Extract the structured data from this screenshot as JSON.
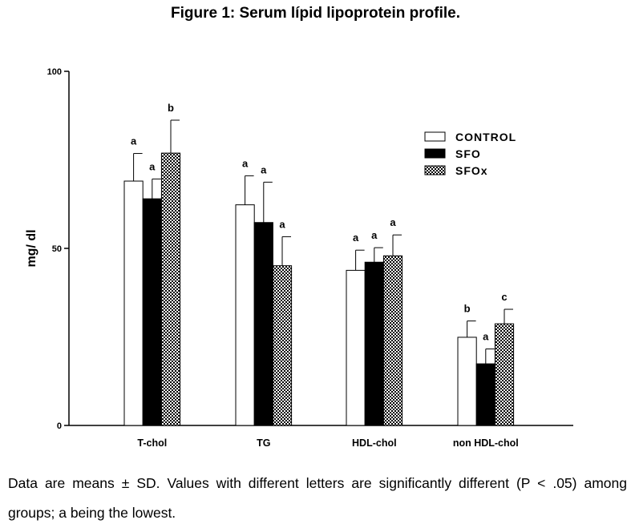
{
  "title": "Figure 1: Serum lípid lipoprotein profile.",
  "caption": "Data are means ± SD. Values with different letters are significantly different (P < .05) among groups; a being the lowest.",
  "chart_data": {
    "type": "bar",
    "title": "Figure 1: Serum lípid lipoprotein profile.",
    "xlabel": "",
    "ylabel": "mg/ dl",
    "ylim": [
      0,
      100
    ],
    "yticks": [
      "0",
      "50",
      "100"
    ],
    "categories": [
      "T-chol",
      "TG",
      "HDL-chol",
      "non HDL-chol"
    ],
    "legend_position": "top-right",
    "series": [
      {
        "name": "CONTROL",
        "fill": "white",
        "values": [
          69,
          62.3,
          43.8,
          24.9
        ],
        "sd": [
          7.8,
          8.2,
          5.7,
          4.6
        ],
        "letters": [
          "a",
          "a",
          "a",
          "b"
        ]
      },
      {
        "name": "SFO",
        "fill": "black",
        "values": [
          64,
          57.3,
          46.1,
          17.4
        ],
        "sd": [
          5.6,
          11.4,
          4.1,
          4.2
        ],
        "letters": [
          "a",
          "a",
          "a",
          "a"
        ]
      },
      {
        "name": "SFOx",
        "fill": "checker",
        "values": [
          76.9,
          45.1,
          47.9,
          28.7
        ],
        "sd": [
          9.3,
          8.2,
          5.9,
          4.1
        ],
        "letters": [
          "b",
          "a",
          "a",
          "c"
        ]
      }
    ]
  }
}
